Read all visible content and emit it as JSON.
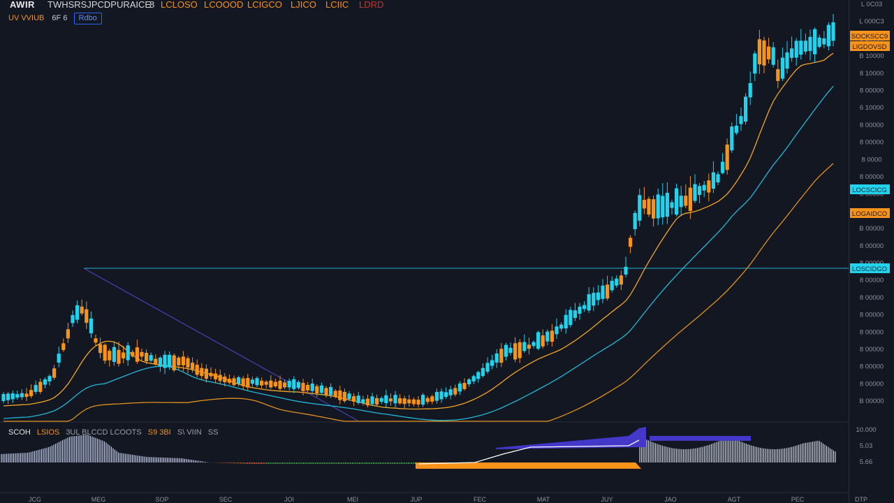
{
  "header": {
    "symbol": "AWIR",
    "name": "TWHSRSJPCDPURAICE",
    "interval": "8",
    "open": "LCLOSO",
    "high": "LCOOOD",
    "low": "LCIGCO",
    "close": "LJICO",
    "change": "LCIIC",
    "change_pct": "LDRD"
  },
  "subheader": {
    "volume_label": "UV VVIUB",
    "mid_label": "6F 6",
    "button_label": "Rdbo"
  },
  "indicator": {
    "label": "SCOH",
    "values": [
      "LSIOS",
      "3UL BLCCD LCOOTS",
      "S9 3BI",
      "S\\ VIIN",
      "SS"
    ]
  },
  "price_axis": {
    "ticks": [
      "L 0C03",
      "L 000C3",
      "8 10000",
      "B 10000",
      "8 10000",
      "8 00000",
      "6 10000",
      "8 00000",
      "8 00000",
      "8 0000",
      "8 00000",
      "8 00000",
      "8 00000",
      "B 00000",
      "8 00000",
      "8 00000",
      "8 00000",
      "8 00000",
      "8 00000",
      "8 00000",
      "8 00000",
      "8 00000",
      "8 00000",
      "B 00000"
    ],
    "tags": [
      {
        "text": "SOCKSCC9",
        "color": "#f7931a",
        "text_color": "#1a1a1a"
      },
      {
        "text": "LIGDOVSD",
        "color": "#f7931a",
        "text_color": "#1a1a1a"
      },
      {
        "text": "LOCSCICG",
        "color": "#22d3ee",
        "text_color": "#0b2a33"
      },
      {
        "text": "LOGAIDCO",
        "color": "#f7931a",
        "text_color": "#1a1a1a"
      },
      {
        "text": "LOSCIDGO",
        "color": "#22d3ee",
        "text_color": "#0b2a33"
      }
    ]
  },
  "indicator_axis": {
    "ticks": [
      "10.000",
      "5.03",
      "5.66"
    ]
  },
  "time_axis": {
    "labels": [
      "JCG",
      "MEG",
      "SOP",
      "SEC",
      "JOI",
      "MEI",
      "JUP",
      "FEC",
      "MAT",
      "JUY",
      "JAO",
      "AGT",
      "PEC",
      "DTP"
    ]
  },
  "colors": {
    "background": "#131722",
    "bull": "#22d3ee",
    "bear": "#f7931a",
    "ma_fast": "#f5a623",
    "ma_mid": "#22b8d8",
    "ma_slow": "#e0901c",
    "hline": "#1fb3d6",
    "trendline": "#4a3fb5"
  }
}
